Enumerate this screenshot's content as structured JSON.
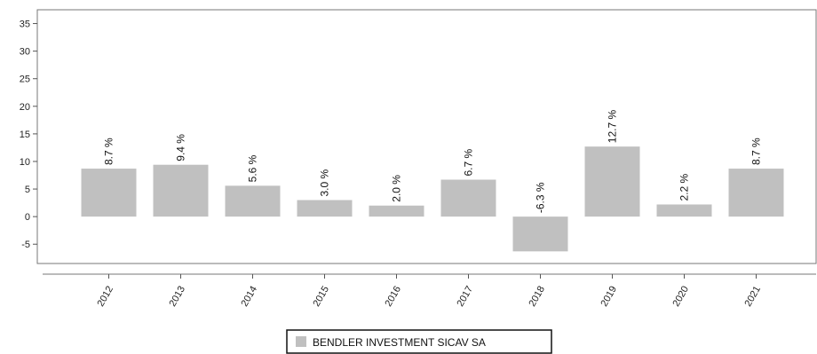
{
  "chart_data": {
    "type": "bar",
    "categories": [
      "2012",
      "2013",
      "2014",
      "2015",
      "2016",
      "2017",
      "2018",
      "2019",
      "2020",
      "2021"
    ],
    "series": [
      {
        "name": "BENDLER INVESTMENT SICAV SA",
        "values": [
          8.7,
          9.4,
          5.6,
          3.0,
          2.0,
          6.7,
          -6.3,
          12.7,
          2.2,
          8.7
        ],
        "labels": [
          "8.7 %",
          "9.4 %",
          "5.6 %",
          "3.0 %",
          "2.0 %",
          "6.7 %",
          "-6.3 %",
          "12.7 %",
          "2.2 %",
          "8.7 %"
        ],
        "color": "#c0c0c0"
      }
    ],
    "yticks": [
      -5,
      0,
      5,
      10,
      15,
      20,
      25,
      30,
      35
    ],
    "ylim": [
      -8.5,
      37.5
    ],
    "title": "",
    "xlabel": "",
    "ylabel": "",
    "grid": false,
    "legend": "bottom-center"
  }
}
